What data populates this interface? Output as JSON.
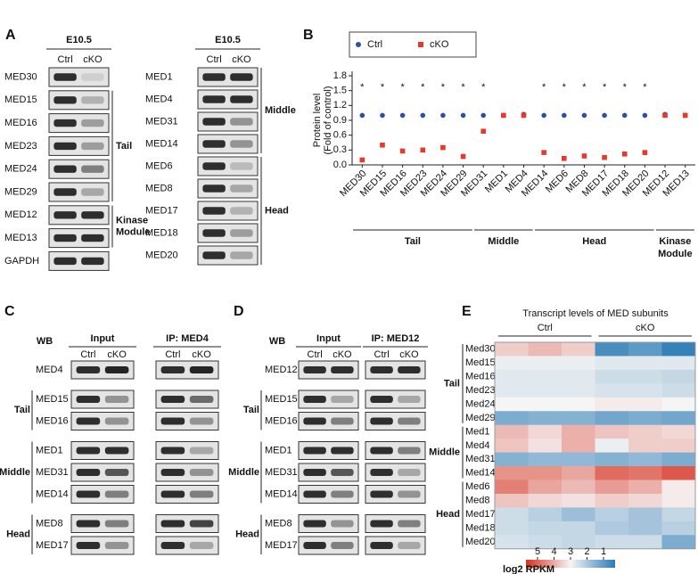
{
  "panel_labels": [
    "A",
    "B",
    "C",
    "D",
    "E"
  ],
  "panel_a": {
    "columns": [
      "Ctrl",
      "cKO"
    ],
    "blocks": [
      {
        "header": "E10.5",
        "sections": [
          {
            "rows": [
              "MED30"
            ]
          },
          {
            "group": [
              "Tail"
            ],
            "rows": [
              "MED15",
              "MED16",
              "MED23",
              "MED24",
              "MED29"
            ]
          },
          {
            "group": [
              "Kinase",
              "Module"
            ],
            "rows": [
              "MED12",
              "MED13"
            ]
          },
          {
            "rows": [
              "GAPDH"
            ]
          }
        ]
      },
      {
        "header": "E10.5",
        "sections": [
          {
            "group": [
              "Middle"
            ],
            "rows": [
              "MED1",
              "MED4",
              "MED31",
              "MED14"
            ]
          },
          {
            "group": [
              "Head"
            ],
            "rows": [
              "MED6",
              "MED8",
              "MED17",
              "MED18",
              "MED20"
            ]
          }
        ]
      }
    ]
  },
  "chart_data": {
    "type": "dot",
    "ylabel": [
      "Protein level",
      "(Fold of control)"
    ],
    "categories": [
      "MED30",
      "MED15",
      "MED16",
      "MED23",
      "MED24",
      "MED29",
      "MED31",
      "MED1",
      "MED4",
      "MED14",
      "MED6",
      "MED8",
      "MED17",
      "MED18",
      "MED20",
      "MED12",
      "MED13"
    ],
    "series": [
      {
        "name": "Ctrl",
        "color": "#2b4fa8",
        "marker": "circle",
        "values": [
          1.0,
          1.0,
          1.0,
          1.0,
          1.0,
          1.0,
          1.0,
          1.0,
          1.02,
          1.0,
          1.0,
          1.0,
          1.0,
          1.0,
          1.0,
          1.02,
          1.0
        ]
      },
      {
        "name": "cKO",
        "color": "#e8382b",
        "marker": "square",
        "values": [
          0.1,
          0.4,
          0.28,
          0.3,
          0.35,
          0.17,
          0.68,
          1.0,
          1.0,
          0.25,
          0.13,
          0.18,
          0.15,
          0.22,
          0.25,
          1.0,
          1.0
        ]
      }
    ],
    "significance": [
      "*",
      "*",
      "*",
      "*",
      "*",
      "*",
      "*",
      null,
      null,
      "*",
      "*",
      "*",
      "*",
      "*",
      "*",
      null,
      null
    ],
    "groups": [
      {
        "label": [
          "Tail"
        ],
        "categories": [
          "MED30",
          "MED29"
        ]
      },
      {
        "label": [
          "Middle"
        ],
        "categories": [
          "MED31",
          "MED4"
        ]
      },
      {
        "label": [
          "Head"
        ],
        "categories": [
          "MED14",
          "MED20"
        ]
      },
      {
        "label": [
          "Kinase",
          "Module"
        ],
        "categories": [
          "MED12",
          "MED13"
        ]
      }
    ],
    "ylim": [
      0,
      1.8
    ],
    "yticks": [
      {
        "value": 0,
        "label": "0.0"
      },
      0.3,
      0.6,
      0.9,
      1.2,
      1.5,
      1.8
    ]
  },
  "panel_c": {
    "wb": "WB",
    "input": "Input",
    "ip": "IP: MED4",
    "columns": [
      "Ctrl",
      "cKO"
    ],
    "sections": [
      {
        "rows": [
          "MED4"
        ]
      },
      {
        "group": "Tail",
        "rows": [
          "MED15",
          "MED16"
        ]
      },
      {
        "group": "Middle",
        "rows": [
          "MED1",
          "MED31",
          "MED14"
        ]
      },
      {
        "group": "Head",
        "rows": [
          "MED8",
          "MED17"
        ]
      }
    ]
  },
  "panel_d": {
    "wb": "WB",
    "input": "Input",
    "ip": "IP: MED12",
    "columns": [
      "Ctrl",
      "cKO"
    ],
    "sections": [
      {
        "rows": [
          "MED12"
        ]
      },
      {
        "group": "Tail",
        "rows": [
          "MED15",
          "MED16"
        ]
      },
      {
        "group": "Middle",
        "rows": [
          "MED1",
          "MED31",
          "MED14"
        ]
      },
      {
        "group": "Head",
        "rows": [
          "MED8",
          "MED17"
        ]
      }
    ]
  },
  "heatmap": {
    "title": "Transcript levels of MED subunits",
    "columns": [
      "Ctrl",
      "cKO"
    ],
    "rows": [
      "Med30",
      "Med15",
      "Med16",
      "Med23",
      "Med24",
      "Med29",
      "Med1",
      "Med4",
      "Med31",
      "Med14",
      "Med6",
      "Med8",
      "Med17",
      "Med18",
      "Med20"
    ],
    "groups": [
      {
        "label": "Tail",
        "rows": [
          "Med30",
          "Med29"
        ]
      },
      {
        "label": "Middle",
        "rows": [
          "Med1",
          "Med14"
        ]
      },
      {
        "label": "Head",
        "rows": [
          "Med6",
          "Med20"
        ]
      }
    ],
    "values": [
      [
        3.4,
        3.6,
        3.4,
        1.3,
        1.5,
        1.1
      ],
      [
        2.9,
        2.9,
        2.9,
        2.8,
        2.8,
        2.8
      ],
      [
        2.8,
        2.8,
        2.8,
        2.6,
        2.6,
        2.5
      ],
      [
        2.8,
        2.8,
        2.8,
        2.7,
        2.7,
        2.6
      ],
      [
        3.0,
        3.0,
        3.0,
        3.1,
        3.1,
        3.0
      ],
      [
        1.8,
        1.9,
        1.9,
        1.7,
        1.8,
        1.7
      ],
      [
        3.6,
        3.3,
        3.7,
        3.5,
        3.4,
        3.3
      ],
      [
        3.5,
        3.2,
        3.7,
        2.9,
        3.4,
        3.4
      ],
      [
        1.9,
        2.0,
        2.0,
        1.9,
        2.0,
        1.8
      ],
      [
        4.0,
        4.0,
        3.8,
        4.4,
        4.3,
        4.6
      ],
      [
        4.2,
        3.8,
        3.6,
        3.9,
        3.7,
        3.1
      ],
      [
        3.5,
        3.3,
        3.2,
        3.4,
        3.3,
        3.1
      ],
      [
        2.6,
        2.4,
        2.1,
        2.4,
        2.2,
        2.5
      ],
      [
        2.6,
        2.5,
        2.5,
        2.3,
        2.2,
        2.4
      ],
      [
        2.7,
        2.6,
        2.5,
        2.6,
        2.6,
        1.8
      ]
    ],
    "clim": [
      1,
      5
    ],
    "colormap": [
      "#2c7bb6",
      "#f5f5f5",
      "#d7301f"
    ],
    "colorbar": {
      "ticks": [
        5,
        4,
        3,
        2,
        1
      ],
      "label": "log2 RPKM"
    }
  }
}
